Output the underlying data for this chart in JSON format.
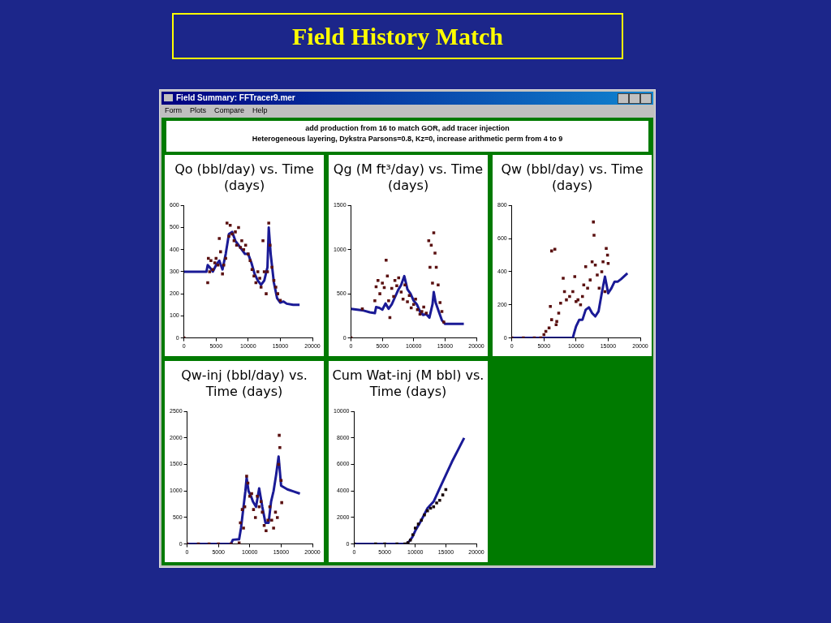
{
  "chart_data": [
    {
      "type": "other",
      "title": "Field History Match",
      "annotations": [
        "Field Summary:  FFTracer9.mer",
        "Form",
        "Plots",
        "Compare",
        "Help",
        "add production from 16 to match GOR, add tracer injection",
        "Heterogeneous layering, Dykstra Parsons=0.8, Kz=0, increase arithmetic perm from 4 to 9"
      ]
    },
    {
      "type": "line",
      "title": "Qo (bbl/day)  vs. Time (days)",
      "xlim": [
        0,
        20000
      ],
      "xticks": [
        0,
        5000,
        10000,
        15000,
        20000
      ],
      "ylim": [
        0,
        600
      ],
      "yticks": [
        0,
        100,
        200,
        300,
        400,
        500,
        600
      ],
      "series": [
        {
          "type": "line",
          "color": "#1a1a96",
          "marker": "none",
          "line_style": "solid",
          "x": [
            0,
            3500,
            3700,
            4000,
            4500,
            5000,
            5500,
            6000,
            6500,
            7000,
            7500,
            8000,
            8500,
            9000,
            9500,
            10000,
            10500,
            11000,
            11500,
            12000,
            12500,
            13000,
            13200,
            13500,
            14000,
            14500,
            15000,
            15500,
            16000,
            17000,
            18000
          ],
          "values": [
            300,
            300,
            330,
            320,
            300,
            330,
            350,
            310,
            380,
            470,
            480,
            440,
            420,
            400,
            380,
            380,
            340,
            290,
            260,
            240,
            260,
            320,
            500,
            380,
            250,
            180,
            160,
            165,
            155,
            150,
            150
          ]
        },
        {
          "type": "scatter",
          "color": "#5a1010",
          "marker": "square",
          "x": [
            0,
            3700,
            3800,
            4000,
            4200,
            4500,
            4800,
            5000,
            5300,
            5500,
            5700,
            6000,
            6200,
            6500,
            6700,
            7000,
            7200,
            7500,
            7800,
            8000,
            8200,
            8500,
            8800,
            9000,
            9300,
            9600,
            10000,
            10300,
            10600,
            10900,
            11200,
            11500,
            11800,
            12000,
            12300,
            12500,
            12800,
            13000,
            13200,
            13400,
            13700,
            14000,
            14300,
            14600,
            15000
          ],
          "values": [
            0,
            250,
            360,
            300,
            350,
            310,
            340,
            360,
            330,
            450,
            390,
            290,
            330,
            360,
            520,
            460,
            510,
            470,
            440,
            480,
            420,
            500,
            410,
            440,
            400,
            420,
            380,
            350,
            310,
            280,
            250,
            300,
            270,
            230,
            440,
            300,
            200,
            300,
            520,
            420,
            320,
            260,
            230,
            200,
            170
          ]
        }
      ]
    },
    {
      "type": "line",
      "title": "Qg (M ft³/day) vs. Time (days)",
      "xlim": [
        0,
        20000
      ],
      "xticks": [
        0,
        5000,
        10000,
        15000,
        20000
      ],
      "ylim": [
        0,
        1500
      ],
      "yticks": [
        0,
        500,
        1000,
        1500
      ],
      "series": [
        {
          "type": "line",
          "color": "#1a1a96",
          "marker": "none",
          "line_style": "solid",
          "x": [
            0,
            1000,
            2000,
            3000,
            3800,
            4000,
            4500,
            5000,
            5500,
            6000,
            6500,
            7000,
            7500,
            8000,
            8500,
            9000,
            9500,
            10000,
            10500,
            11000,
            11500,
            12000,
            12500,
            13000,
            13200,
            13500,
            14000,
            14500,
            15000,
            16000,
            17000,
            18000
          ],
          "values": [
            330,
            320,
            310,
            290,
            280,
            350,
            340,
            320,
            390,
            330,
            380,
            460,
            540,
            600,
            700,
            550,
            500,
            420,
            380,
            300,
            260,
            270,
            230,
            380,
            520,
            400,
            300,
            200,
            160,
            160,
            160,
            160
          ]
        },
        {
          "type": "scatter",
          "color": "#5a1010",
          "marker": "square",
          "x": [
            0,
            1800,
            3800,
            4000,
            4300,
            4600,
            5000,
            5300,
            5600,
            5800,
            6000,
            6200,
            6500,
            6800,
            7000,
            7300,
            7600,
            8000,
            8300,
            8600,
            9000,
            9300,
            9600,
            10000,
            10300,
            10600,
            11000,
            11300,
            11600,
            12000,
            12400,
            12600,
            12800,
            13000,
            13200,
            13400,
            13600,
            13900,
            14200,
            14500,
            14800
          ],
          "values": [
            0,
            330,
            420,
            580,
            650,
            500,
            620,
            570,
            880,
            700,
            420,
            230,
            560,
            470,
            650,
            590,
            680,
            520,
            440,
            600,
            410,
            480,
            340,
            380,
            440,
            320,
            270,
            300,
            350,
            280,
            1100,
            800,
            1050,
            620,
            1190,
            960,
            800,
            600,
            400,
            300,
            180
          ]
        }
      ]
    },
    {
      "type": "line",
      "title": "Qw (bbl/day)  vs. Time (days)",
      "xlim": [
        0,
        20000
      ],
      "xticks": [
        0,
        5000,
        10000,
        15000,
        20000
      ],
      "ylim": [
        0,
        800
      ],
      "yticks": [
        0,
        200,
        400,
        600,
        800
      ],
      "series": [
        {
          "type": "line",
          "color": "#1a1a96",
          "marker": "none",
          "line_style": "solid",
          "x": [
            0,
            9500,
            9700,
            10000,
            10500,
            11000,
            11500,
            12000,
            12500,
            13000,
            13500,
            14000,
            14500,
            15000,
            15500,
            16000,
            16500,
            17000,
            18000
          ],
          "values": [
            0,
            0,
            30,
            70,
            110,
            110,
            170,
            185,
            150,
            130,
            160,
            270,
            370,
            270,
            300,
            340,
            340,
            355,
            390
          ]
        },
        {
          "type": "scatter",
          "color": "#5a1010",
          "marker": "square",
          "x": [
            0,
            1800,
            3500,
            4500,
            5000,
            5300,
            5800,
            6000,
            6200,
            6200,
            6700,
            6900,
            7000,
            7300,
            7600,
            8000,
            8200,
            8500,
            9000,
            9500,
            9800,
            10000,
            10300,
            10700,
            11000,
            11200,
            11500,
            11800,
            12200,
            12500,
            12700,
            12800,
            13000,
            13300,
            13600,
            14000,
            14200,
            14500,
            14700,
            14900,
            15000
          ],
          "values": [
            0,
            0,
            0,
            0,
            20,
            40,
            60,
            190,
            110,
            525,
            535,
            80,
            100,
            150,
            210,
            360,
            280,
            230,
            250,
            280,
            370,
            220,
            230,
            200,
            250,
            320,
            430,
            300,
            350,
            460,
            700,
            620,
            440,
            380,
            300,
            400,
            460,
            280,
            540,
            500,
            450
          ]
        }
      ]
    },
    {
      "type": "line",
      "title": "Qw-inj (bbl/day) vs. Time (days)",
      "xlim": [
        0,
        20000
      ],
      "xticks": [
        0,
        5000,
        10000,
        15000,
        20000
      ],
      "ylim": [
        0,
        2500
      ],
      "yticks": [
        0,
        500,
        1000,
        1500,
        2000,
        2500
      ],
      "series": [
        {
          "type": "line",
          "color": "#1a1a96",
          "marker": "none",
          "line_style": "solid",
          "x": [
            0,
            7000,
            7300,
            8300,
            8600,
            9000,
            9300,
            9500,
            9800,
            10200,
            10500,
            11000,
            11500,
            12000,
            12500,
            13000,
            13400,
            13800,
            14200,
            14600,
            15000,
            16000,
            17000,
            18000
          ],
          "values": [
            0,
            0,
            80,
            90,
            300,
            700,
            1000,
            1250,
            1000,
            900,
            800,
            700,
            1050,
            700,
            400,
            400,
            800,
            1000,
            1300,
            1650,
            1100,
            1030,
            990,
            950
          ]
        },
        {
          "type": "scatter",
          "color": "#5a1010",
          "marker": "square",
          "x": [
            0,
            1800,
            3500,
            5000,
            7000,
            8300,
            8500,
            8800,
            9000,
            9200,
            9500,
            9700,
            10000,
            10300,
            10600,
            10900,
            11200,
            11500,
            11800,
            12000,
            12300,
            12600,
            12900,
            13200,
            13500,
            13800,
            14100,
            14400,
            14600,
            14700,
            14800,
            15000,
            15100
          ],
          "values": [
            0,
            0,
            0,
            0,
            0,
            20,
            400,
            650,
            300,
            700,
            1280,
            1150,
            900,
            950,
            650,
            500,
            900,
            700,
            800,
            600,
            350,
            250,
            450,
            700,
            450,
            300,
            600,
            500,
            1500,
            2050,
            1820,
            1200,
            780
          ]
        }
      ]
    },
    {
      "type": "line",
      "title": "Cum Wat-inj (M bbl) vs. Time (days)",
      "xlim": [
        0,
        20000
      ],
      "xticks": [
        0,
        5000,
        10000,
        15000,
        20000
      ],
      "ylim": [
        0,
        10000
      ],
      "yticks": [
        0,
        2000,
        4000,
        6000,
        8000,
        10000
      ],
      "series": [
        {
          "type": "line",
          "color": "#1a1a96",
          "marker": "none",
          "line_style": "solid",
          "x": [
            0,
            8500,
            9000,
            9500,
            10000,
            11000,
            12000,
            13000,
            14000,
            15000,
            16000,
            17000,
            18000
          ],
          "values": [
            0,
            0,
            200,
            500,
            1000,
            1800,
            2700,
            3200,
            4200,
            5200,
            6200,
            7100,
            8000
          ]
        },
        {
          "type": "scatter",
          "color": "#1a0808",
          "marker": "square",
          "x": [
            0,
            3500,
            5000,
            7000,
            8300,
            8800,
            9200,
            9600,
            10000,
            10500,
            11000,
            11500,
            12000,
            12500,
            13000,
            13500,
            14000,
            14500,
            15000
          ],
          "values": [
            0,
            0,
            0,
            0,
            0,
            100,
            300,
            700,
            1200,
            1500,
            1800,
            2200,
            2500,
            2700,
            2800,
            3100,
            3300,
            3700,
            4100
          ]
        }
      ]
    }
  ]
}
